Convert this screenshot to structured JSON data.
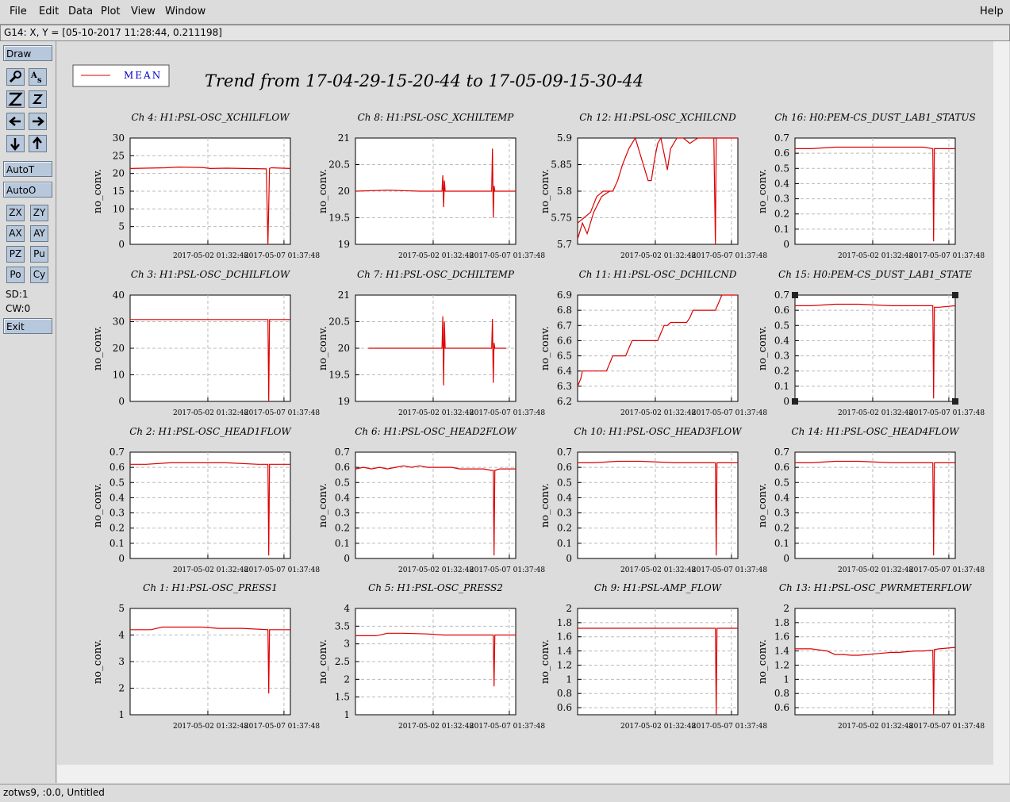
{
  "menubar": {
    "file": "File",
    "edit": "Edit",
    "data": "Data",
    "plot": "Plot",
    "view": "View",
    "window": "Window",
    "help": "Help"
  },
  "coord_readout": "G14: X, Y = [05-10-2017 11:28:44, 0.211198]",
  "toolbar": {
    "draw": "Draw",
    "autot": "AutoT",
    "autoo": "AutoO",
    "zx": "ZX",
    "zy": "ZY",
    "ax": "AX",
    "ay": "AY",
    "pz": "PZ",
    "pu": "Pu",
    "po": "Po",
    "cy": "Cy",
    "sd": "SD:1",
    "cw": "CW:0",
    "exit": "Exit",
    "icons": [
      "wrench-icon",
      "text-icon",
      "zoom-big-icon",
      "zoom-small-icon",
      "arrow-left-icon",
      "arrow-right-icon",
      "arrow-down-icon",
      "arrow-up-icon"
    ]
  },
  "legend": {
    "label": "MEAN",
    "color": "#dd0000",
    "text_color": "#0000cc"
  },
  "main_title": "Trend from 17-04-29-15-20-44 to 17-05-09-15-30-44",
  "status": "zotws9, :0.0, Untitled",
  "colors": {
    "trace": "#dd0000",
    "grid": "#bbbbbb"
  },
  "chart_data": [
    {
      "type": "line",
      "title": "Ch 4: H1:PSL-OSC_XCHILFLOW",
      "ylabel": "no_conv.",
      "ylim": [
        0,
        30
      ],
      "yticks": [
        "0",
        "5",
        "10",
        "15",
        "20",
        "25",
        "30"
      ],
      "xticks": [
        "2017-05-02 01:32:48",
        "2017-05-07 01:37:48"
      ],
      "series": [
        {
          "x": [
            0,
            0.22,
            0.3,
            0.45,
            0.5,
            0.6,
            0.85,
            0.86,
            0.87,
            0.88,
            1
          ],
          "y": [
            21.4,
            21.6,
            21.8,
            21.7,
            21.4,
            21.5,
            21.3,
            0,
            21.4,
            21.6,
            21.4
          ]
        }
      ],
      "selected": false
    },
    {
      "type": "line",
      "title": "Ch 8: H1:PSL-OSC_XCHILTEMP",
      "ylabel": "no_conv.",
      "ylim": [
        19,
        21
      ],
      "yticks": [
        "19",
        "19.5",
        "20",
        "20.5",
        "21"
      ],
      "xticks": [
        "2017-05-02 01:32:48",
        "2017-05-07 01:37:48"
      ],
      "series": [
        {
          "x": [
            0,
            0.2,
            0.4,
            0.54,
            0.545,
            0.55,
            0.555,
            0.56,
            0.6,
            0.85,
            0.855,
            0.86,
            0.865,
            0.87,
            1
          ],
          "y": [
            20.0,
            20.02,
            20.0,
            20.0,
            20.3,
            19.7,
            20.2,
            20.0,
            20.0,
            20.0,
            20.8,
            19.5,
            20.1,
            20.0,
            20.0
          ]
        }
      ],
      "selected": false
    },
    {
      "type": "line",
      "title": "Ch 12: H1:PSL-OSC_XCHILCND",
      "ylabel": "no_conv.",
      "ylim": [
        5.7,
        5.9
      ],
      "yticks": [
        "5.7",
        "5.75",
        "5.8",
        "5.85",
        "5.9"
      ],
      "xticks": [
        "2017-05-02 01:32:48",
        "2017-05-07 01:37:48"
      ],
      "series": [
        {
          "x": [
            0,
            0.04,
            0.08,
            0.12,
            0.16,
            0.2,
            0.22,
            0.25,
            0.28,
            0.32,
            0.36,
            0.4,
            0.44,
            0.46,
            0.48,
            0.5,
            0.52,
            0.54,
            0.56,
            0.58,
            0.62,
            0.66,
            0.7,
            0.75,
            0.8,
            0.85,
            0.86,
            0.865,
            0.87,
            0.9,
            1
          ],
          "y": [
            5.74,
            5.75,
            5.76,
            5.79,
            5.8,
            5.8,
            5.8,
            5.82,
            5.85,
            5.88,
            5.9,
            5.86,
            5.82,
            5.82,
            5.86,
            5.89,
            5.9,
            5.87,
            5.84,
            5.88,
            5.9,
            5.9,
            5.89,
            5.9,
            5.9,
            5.9,
            5.7,
            5.9,
            5.9,
            5.9,
            5.9
          ]
        },
        {
          "x": [
            0,
            0.03,
            0.06,
            0.1,
            0.15,
            0.2
          ],
          "y": [
            5.71,
            5.74,
            5.72,
            5.76,
            5.79,
            5.8
          ]
        }
      ],
      "selected": false
    },
    {
      "type": "line",
      "title": "Ch 16: H0:PEM-CS_DUST_LAB1_STATUS",
      "ylabel": "no_conv.",
      "ylim": [
        0,
        0.7
      ],
      "yticks": [
        "0",
        "0.1",
        "0.2",
        "0.3",
        "0.4",
        "0.5",
        "0.6",
        "0.7"
      ],
      "xticks": [
        "2017-05-02 01:32:48",
        "2017-05-07 01:37:48"
      ],
      "series": [
        {
          "x": [
            0,
            0.1,
            0.25,
            0.4,
            0.6,
            0.8,
            0.86,
            0.865,
            0.87,
            0.9,
            1
          ],
          "y": [
            0.63,
            0.63,
            0.64,
            0.64,
            0.64,
            0.64,
            0.63,
            0.02,
            0.63,
            0.63,
            0.63
          ]
        }
      ],
      "selected": false
    },
    {
      "type": "line",
      "title": "Ch 3: H1:PSL-OSC_DCHILFLOW",
      "ylabel": "no_conv.",
      "ylim": [
        0,
        40
      ],
      "yticks": [
        "0",
        "10",
        "20",
        "30",
        "40"
      ],
      "xticks": [
        "2017-05-02 01:32:48",
        "2017-05-07 01:37:48"
      ],
      "series": [
        {
          "x": [
            0,
            0.5,
            0.86,
            0.865,
            0.87,
            1
          ],
          "y": [
            30.8,
            30.8,
            30.8,
            0,
            30.8,
            30.8
          ]
        }
      ],
      "selected": false
    },
    {
      "type": "line",
      "title": "Ch 7: H1:PSL-OSC_DCHILTEMP",
      "ylabel": "no_conv.",
      "ylim": [
        19,
        21
      ],
      "yticks": [
        "19",
        "19.5",
        "20",
        "20.5",
        "21"
      ],
      "xticks": [
        "2017-05-02 01:32:48",
        "2017-05-07 01:37:48"
      ],
      "series": [
        {
          "x": [
            0.08,
            0.4,
            0.54,
            0.545,
            0.55,
            0.555,
            0.56,
            0.6,
            0.85,
            0.855,
            0.86,
            0.865,
            0.87,
            0.94
          ],
          "y": [
            20.0,
            20.0,
            20.0,
            20.6,
            19.3,
            20.5,
            20.0,
            20.0,
            20.0,
            20.55,
            19.35,
            20.1,
            20.0,
            20.0
          ]
        }
      ],
      "selected": false
    },
    {
      "type": "line",
      "title": "Ch 11: H1:PSL-OSC_DCHILCND",
      "ylabel": "no_conv.",
      "ylim": [
        6.2,
        6.9
      ],
      "yticks": [
        "6.2",
        "6.3",
        "6.4",
        "6.5",
        "6.6",
        "6.7",
        "6.8",
        "6.9"
      ],
      "xticks": [
        "2017-05-02 01:32:48",
        "2017-05-07 01:37:48"
      ],
      "series": [
        {
          "x": [
            0,
            0.02,
            0.03,
            0.05,
            0.18,
            0.2,
            0.22,
            0.3,
            0.32,
            0.34,
            0.4,
            0.5,
            0.52,
            0.54,
            0.56,
            0.58,
            0.68,
            0.7,
            0.72,
            0.74,
            0.86,
            0.88,
            0.9,
            0.92,
            0.94,
            1
          ],
          "y": [
            6.3,
            6.35,
            6.4,
            6.4,
            6.4,
            6.45,
            6.5,
            6.5,
            6.55,
            6.6,
            6.6,
            6.6,
            6.65,
            6.7,
            6.7,
            6.72,
            6.72,
            6.75,
            6.8,
            6.8,
            6.8,
            6.85,
            6.9,
            6.9,
            6.92,
            6.92
          ]
        }
      ],
      "selected": false
    },
    {
      "type": "line",
      "title": "Ch 15: H0:PEM-CS_DUST_LAB1_STATE",
      "ylabel": "no_conv.",
      "ylim": [
        0,
        0.7
      ],
      "yticks": [
        "0",
        "0.1",
        "0.2",
        "0.3",
        "0.4",
        "0.5",
        "0.6",
        "0.7"
      ],
      "xticks": [
        "2017-05-02 01:32:48",
        "2017-05-07 01:37:48"
      ],
      "series": [
        {
          "x": [
            0,
            0.1,
            0.25,
            0.4,
            0.6,
            0.8,
            0.86,
            0.865,
            0.87,
            0.9,
            1
          ],
          "y": [
            0.63,
            0.63,
            0.64,
            0.64,
            0.63,
            0.63,
            0.63,
            0.02,
            0.62,
            0.62,
            0.63
          ]
        }
      ],
      "selected": true
    },
    {
      "type": "line",
      "title": "Ch 2: H1:PSL-OSC_HEAD1FLOW",
      "ylabel": "no_conv.",
      "ylim": [
        0,
        0.7
      ],
      "yticks": [
        "0",
        "0.1",
        "0.2",
        "0.3",
        "0.4",
        "0.5",
        "0.6",
        "0.7"
      ],
      "xticks": [
        "2017-05-02 01:32:48",
        "2017-05-07 01:37:48"
      ],
      "series": [
        {
          "x": [
            0,
            0.1,
            0.25,
            0.4,
            0.6,
            0.8,
            0.86,
            0.865,
            0.87,
            0.9,
            1
          ],
          "y": [
            0.62,
            0.62,
            0.63,
            0.63,
            0.63,
            0.62,
            0.62,
            0.02,
            0.62,
            0.62,
            0.62
          ]
        }
      ],
      "selected": false
    },
    {
      "type": "line",
      "title": "Ch 6: H1:PSL-OSC_HEAD2FLOW",
      "ylabel": "no_conv.",
      "ylim": [
        0,
        0.7
      ],
      "yticks": [
        "0",
        "0.1",
        "0.2",
        "0.3",
        "0.4",
        "0.5",
        "0.6",
        "0.7"
      ],
      "xticks": [
        "2017-05-02 01:32:48",
        "2017-05-07 01:37:48"
      ],
      "series": [
        {
          "x": [
            0,
            0.05,
            0.1,
            0.15,
            0.2,
            0.25,
            0.3,
            0.35,
            0.4,
            0.45,
            0.5,
            0.55,
            0.6,
            0.65,
            0.7,
            0.75,
            0.8,
            0.85,
            0.86,
            0.865,
            0.87,
            0.9,
            0.95,
            1
          ],
          "y": [
            0.59,
            0.6,
            0.59,
            0.6,
            0.59,
            0.6,
            0.61,
            0.6,
            0.61,
            0.6,
            0.6,
            0.6,
            0.6,
            0.59,
            0.59,
            0.59,
            0.59,
            0.58,
            0.58,
            0.02,
            0.58,
            0.59,
            0.59,
            0.59
          ]
        }
      ],
      "selected": false
    },
    {
      "type": "line",
      "title": "Ch 10: H1:PSL-OSC_HEAD3FLOW",
      "ylabel": "no_conv.",
      "ylim": [
        0,
        0.7
      ],
      "yticks": [
        "0",
        "0.1",
        "0.2",
        "0.3",
        "0.4",
        "0.5",
        "0.6",
        "0.7"
      ],
      "xticks": [
        "2017-05-02 01:32:48",
        "2017-05-07 01:37:48"
      ],
      "series": [
        {
          "x": [
            0,
            0.1,
            0.25,
            0.4,
            0.6,
            0.8,
            0.86,
            0.865,
            0.87,
            0.9,
            1
          ],
          "y": [
            0.63,
            0.63,
            0.64,
            0.64,
            0.63,
            0.63,
            0.63,
            0.02,
            0.63,
            0.63,
            0.63
          ]
        }
      ],
      "selected": false
    },
    {
      "type": "line",
      "title": "Ch 14: H1:PSL-OSC_HEAD4FLOW",
      "ylabel": "no_conv.",
      "ylim": [
        0,
        0.7
      ],
      "yticks": [
        "0",
        "0.1",
        "0.2",
        "0.3",
        "0.4",
        "0.5",
        "0.6",
        "0.7"
      ],
      "xticks": [
        "2017-05-02 01:32:48",
        "2017-05-07 01:37:48"
      ],
      "series": [
        {
          "x": [
            0,
            0.1,
            0.25,
            0.4,
            0.6,
            0.8,
            0.86,
            0.865,
            0.87,
            0.9,
            1
          ],
          "y": [
            0.63,
            0.63,
            0.64,
            0.64,
            0.63,
            0.63,
            0.63,
            0.02,
            0.63,
            0.63,
            0.63
          ]
        }
      ],
      "selected": false
    },
    {
      "type": "line",
      "title": "Ch 1: H1:PSL-OSC_PRESS1",
      "ylabel": "no_conv.",
      "ylim": [
        1,
        5
      ],
      "yticks": [
        "1",
        "2",
        "3",
        "4",
        "5"
      ],
      "xticks": [
        "2017-05-02 01:32:48",
        "2017-05-07 01:37:48"
      ],
      "series": [
        {
          "x": [
            0,
            0.13,
            0.2,
            0.3,
            0.45,
            0.55,
            0.7,
            0.86,
            0.865,
            0.87,
            0.9,
            1
          ],
          "y": [
            4.2,
            4.2,
            4.3,
            4.3,
            4.3,
            4.25,
            4.25,
            4.2,
            1.8,
            4.2,
            4.2,
            4.2
          ]
        }
      ],
      "selected": false
    },
    {
      "type": "line",
      "title": "Ch 5: H1:PSL-OSC_PRESS2",
      "ylabel": "no_conv.",
      "ylim": [
        1,
        4
      ],
      "yticks": [
        "1",
        "1.5",
        "2",
        "2.5",
        "3",
        "3.5",
        "4"
      ],
      "xticks": [
        "2017-05-02 01:32:48",
        "2017-05-07 01:37:48"
      ],
      "series": [
        {
          "x": [
            0,
            0.13,
            0.2,
            0.3,
            0.45,
            0.55,
            0.7,
            0.86,
            0.865,
            0.87,
            0.9,
            1
          ],
          "y": [
            3.23,
            3.23,
            3.3,
            3.3,
            3.28,
            3.25,
            3.25,
            3.25,
            1.8,
            3.25,
            3.25,
            3.25
          ]
        }
      ],
      "selected": false
    },
    {
      "type": "line",
      "title": "Ch 9: H1:PSL-AMP_FLOW",
      "ylabel": "no_conv.",
      "ylim": [
        0.5,
        2
      ],
      "yticks": [
        "0.6",
        "0.8",
        "1",
        "1.2",
        "1.4",
        "1.6",
        "1.8",
        "2"
      ],
      "xticks": [
        "2017-05-02 01:32:48",
        "2017-05-07 01:37:48"
      ],
      "series": [
        {
          "x": [
            0,
            0.2,
            0.4,
            0.6,
            0.8,
            0.86,
            0.865,
            0.87,
            0.9,
            1
          ],
          "y": [
            1.72,
            1.72,
            1.72,
            1.72,
            1.72,
            1.72,
            0.5,
            1.72,
            1.72,
            1.72
          ]
        }
      ],
      "selected": false
    },
    {
      "type": "line",
      "title": "Ch 13: H1:PSL-OSC_PWRMETERFLOW",
      "ylabel": "no_conv.",
      "ylim": [
        0.5,
        2
      ],
      "yticks": [
        "0.6",
        "0.8",
        "1",
        "1.2",
        "1.4",
        "1.6",
        "1.8",
        "2"
      ],
      "xticks": [
        "2017-05-02 01:32:48",
        "2017-05-07 01:37:48"
      ],
      "series": [
        {
          "x": [
            0,
            0.1,
            0.2,
            0.25,
            0.3,
            0.35,
            0.4,
            0.45,
            0.5,
            0.55,
            0.6,
            0.65,
            0.7,
            0.75,
            0.8,
            0.85,
            0.86,
            0.865,
            0.87,
            0.9,
            0.95,
            1
          ],
          "y": [
            1.43,
            1.43,
            1.4,
            1.35,
            1.35,
            1.34,
            1.34,
            1.35,
            1.36,
            1.37,
            1.38,
            1.38,
            1.39,
            1.4,
            1.4,
            1.41,
            1.41,
            0.5,
            1.42,
            1.43,
            1.44,
            1.45
          ]
        }
      ],
      "selected": false
    }
  ]
}
